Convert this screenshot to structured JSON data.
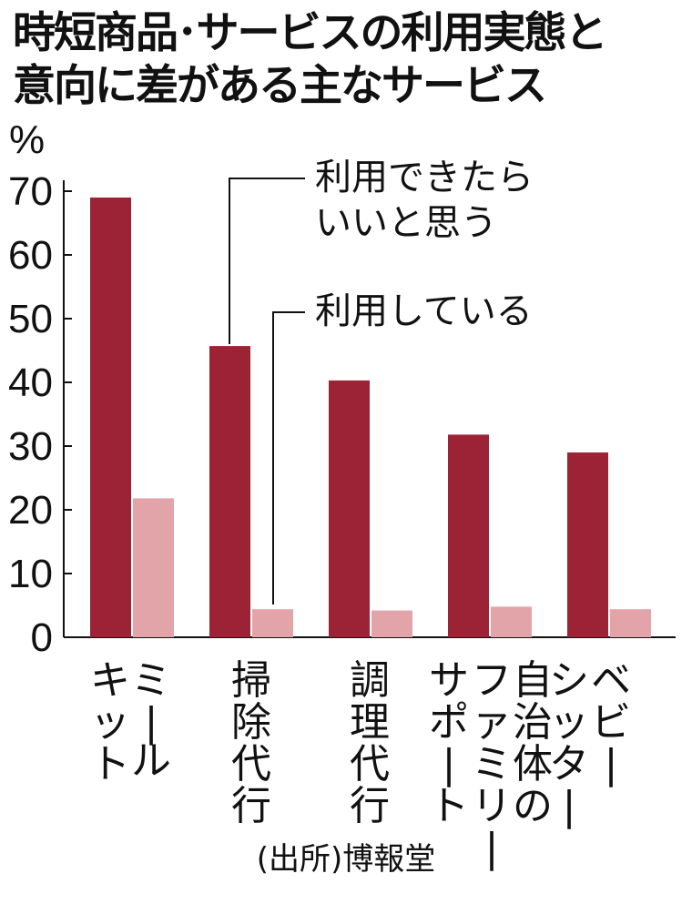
{
  "title_lines": [
    "時短商品･サービスの利用実態と",
    "意向に差がある主なサービス"
  ],
  "source": "(出所)博報堂",
  "colors": {
    "want": "#9b2335",
    "using": "#e3a4a9",
    "text": "#111111"
  },
  "chart_data": {
    "type": "bar",
    "title": "時短商品･サービスの利用実態と意向に差がある主なサービス",
    "ylabel": "%",
    "ylim": [
      0,
      70
    ],
    "yticks": [
      0,
      10,
      20,
      30,
      40,
      50,
      60,
      70
    ],
    "categories": [
      {
        "name": "ミールキット",
        "columns": [
          "ミー",
          "キット",
          "ル"
        ]
      },
      {
        "name": "掃除代行",
        "columns": [
          "掃除代行"
        ]
      },
      {
        "name": "調理代行",
        "columns": [
          "調理代行"
        ]
      },
      {
        "name": "自治体のファミリーサポート",
        "columns": [
          "自治体の",
          "ファミリー",
          "サポート"
        ]
      },
      {
        "name": "ベビーシッター",
        "columns": [
          "ベビー",
          "シッター"
        ]
      }
    ],
    "series": [
      {
        "name": "利用できたらいいと思う",
        "label_lines": [
          "利用できたら",
          "いいと思う"
        ],
        "values": [
          69,
          45.7,
          40.3,
          31.8,
          29
        ]
      },
      {
        "name": "利用している",
        "label_lines": [
          "利用している"
        ],
        "values": [
          21.8,
          4.4,
          4.2,
          4.8,
          4.4
        ]
      }
    ],
    "grid": false,
    "legend": "inline annotations with leader lines"
  }
}
